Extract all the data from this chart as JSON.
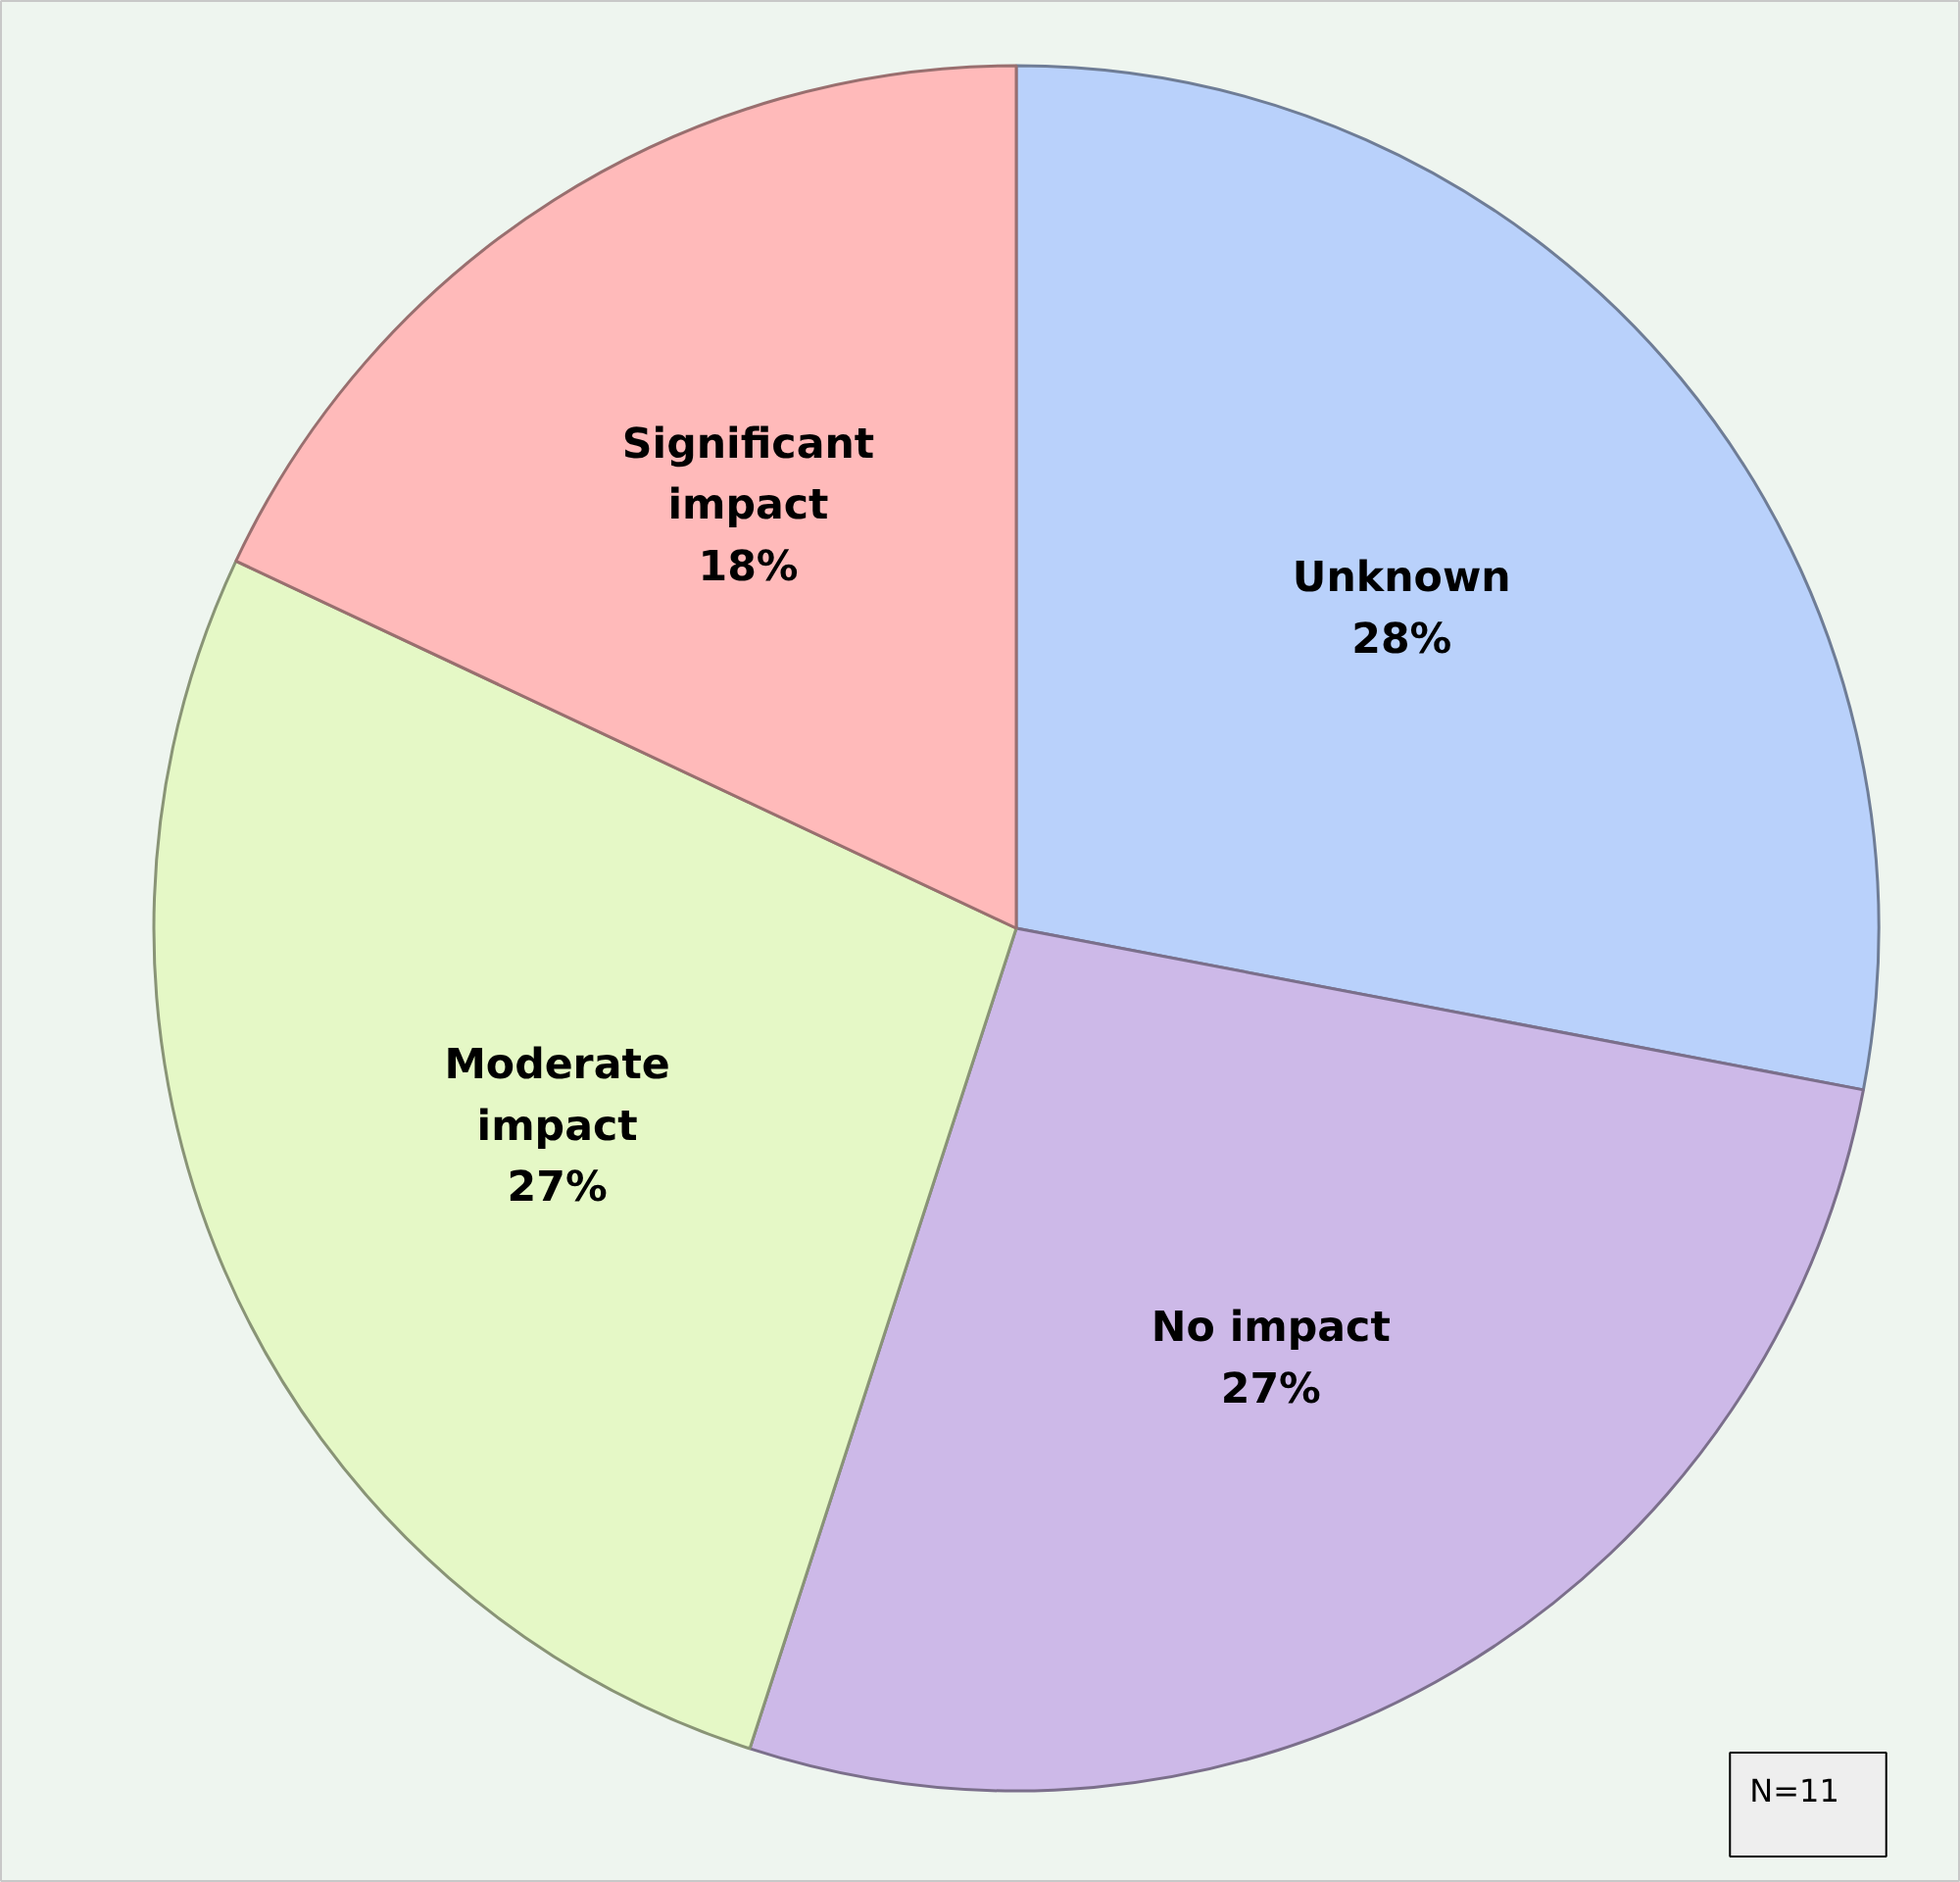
{
  "chart_data": {
    "type": "pie",
    "categories": [
      "Unknown",
      "No impact",
      "Moderate impact",
      "Significant impact"
    ],
    "values": [
      28,
      27,
      27,
      18
    ],
    "value_labels": [
      "28%",
      "27%",
      "27%",
      "18%"
    ],
    "colors": [
      "#b9d1fb",
      "#cdb9e8",
      "#e5f8c6",
      "#ffbaba"
    ],
    "annotations": [
      "N=11"
    ]
  }
}
